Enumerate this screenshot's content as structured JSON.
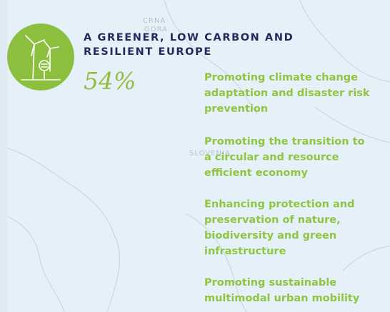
{
  "map_labels": [
    "CRNA",
    "GORA",
    "SLOVENIA"
  ],
  "header": {
    "title_lines": [
      "A GREENER, LOW CARBON AND",
      "RESILIENT EUROPE"
    ],
    "share": "54%"
  },
  "items": [
    [
      "Promoting climate change",
      "adaptation and disaster risk",
      "prevention"
    ],
    [
      "Promoting the transition to",
      "a circular and resource",
      "efficient economy"
    ],
    [
      "Enhancing protection and",
      "preservation of nature,",
      "biodiversity and green",
      "infrastructure"
    ],
    [
      "Promoting sustainable",
      "multimodal urban mobility"
    ]
  ]
}
